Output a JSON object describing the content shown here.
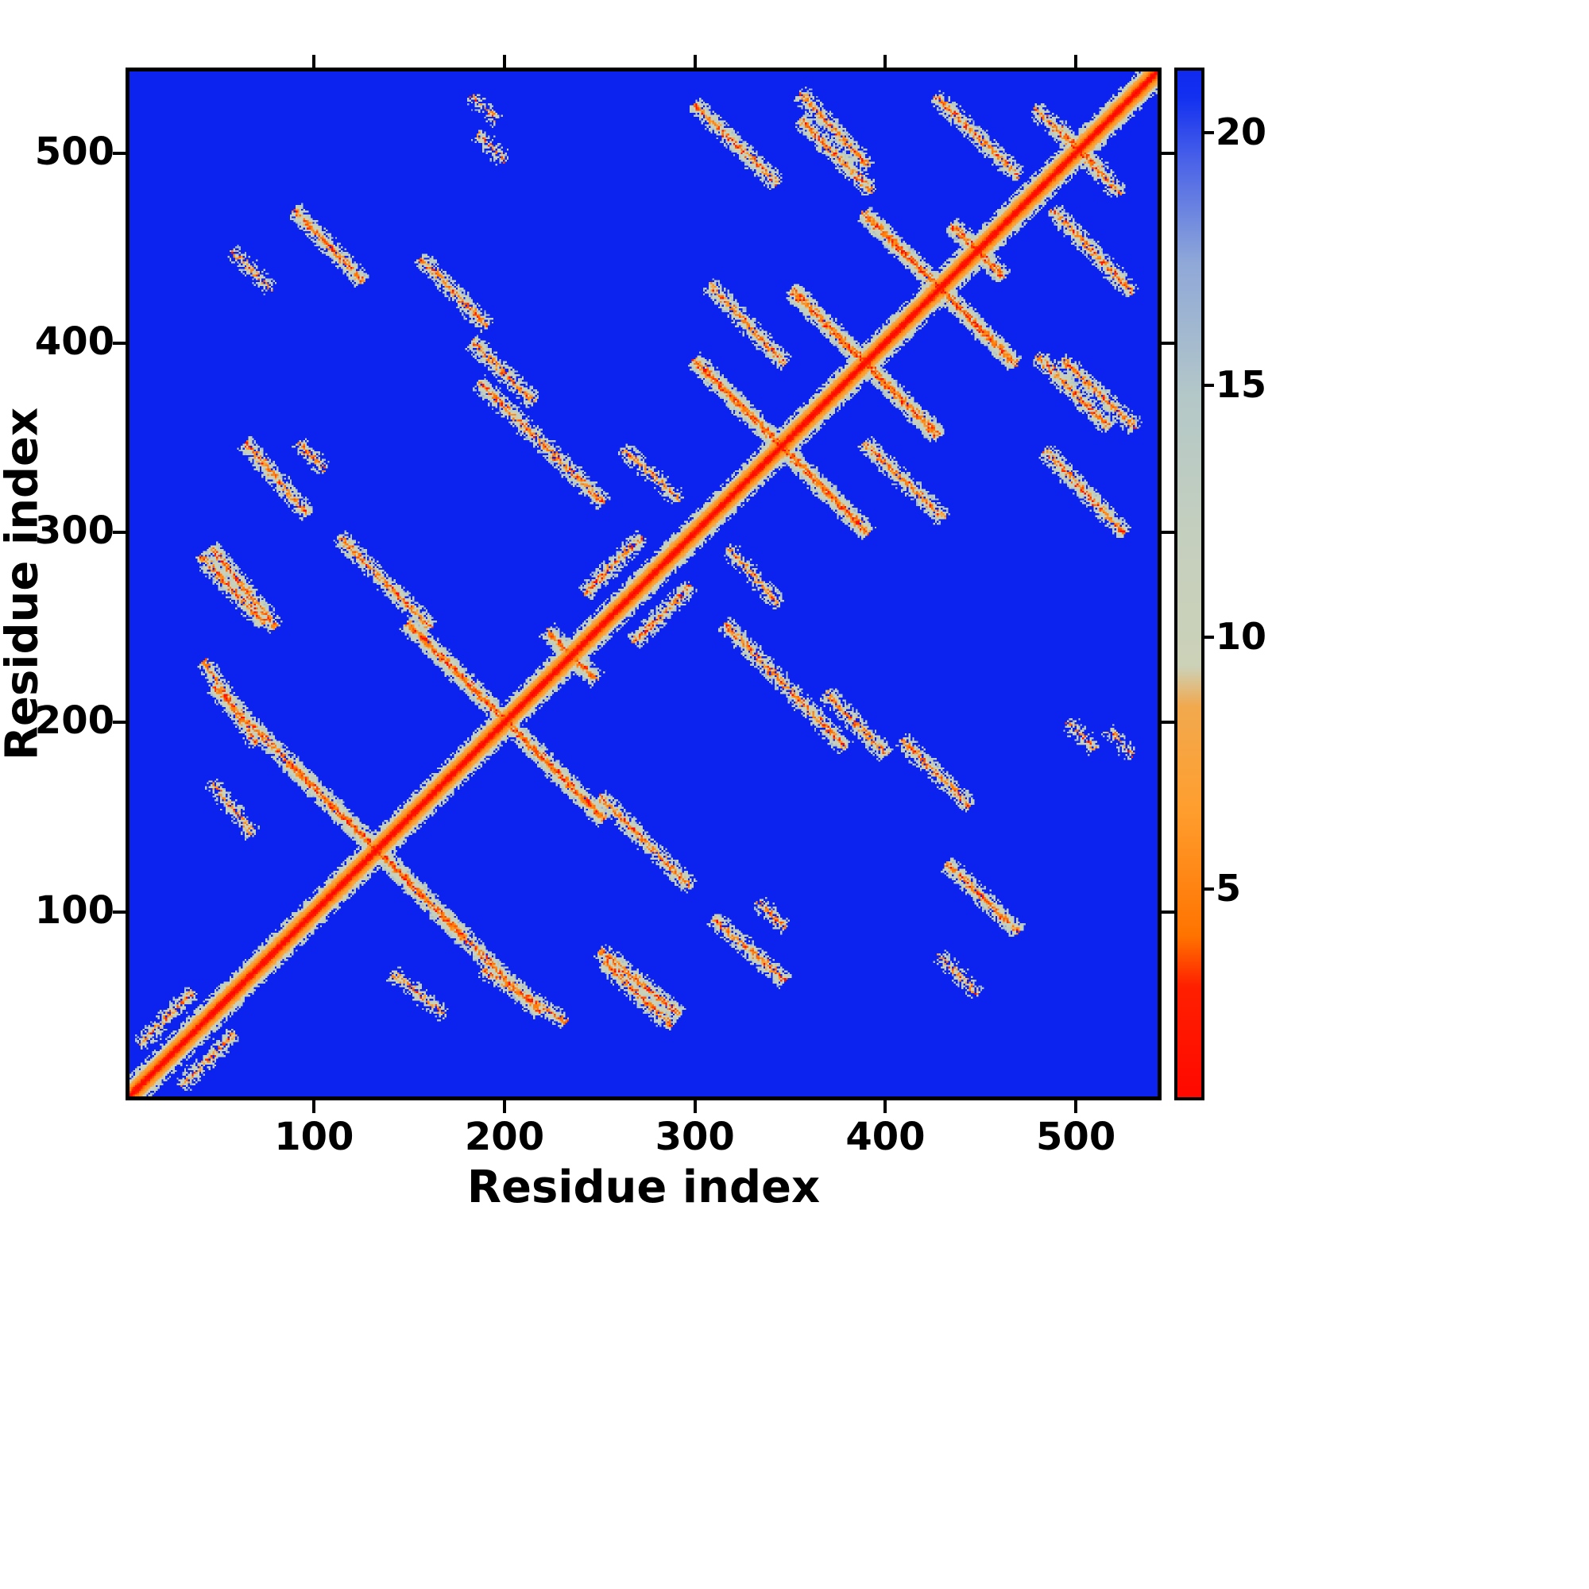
{
  "figure": {
    "xlabel": "Residue index",
    "ylabel": "Residue index"
  },
  "chart_data": {
    "type": "heatmap",
    "title": "",
    "xlabel": "Residue index",
    "ylabel": "Residue index",
    "x_range": [
      1,
      545
    ],
    "y_range": [
      1,
      545
    ],
    "x_ticks": [
      100,
      200,
      300,
      400,
      500
    ],
    "y_ticks": [
      100,
      200,
      300,
      400,
      500
    ],
    "colorbar_ticks": [
      5,
      10,
      15,
      20
    ],
    "value_range": [
      0.8,
      21.3
    ],
    "background_value": 22,
    "n_residues": 545,
    "seed": 1234,
    "description": "Symmetric protein residue-residue distance/contact map: red main diagonal (zero distance) flanked by orange then gray-green band, vivid blue background (large distance), with symmetric antidiagonal secondary-structure contact streaks (gray-green with orange/red cores).",
    "colormap_stops": [
      [
        0.0,
        "#ff0000"
      ],
      [
        3.0,
        "#ff2000"
      ],
      [
        4.0,
        "#ff7300"
      ],
      [
        6.5,
        "#ff9e2e"
      ],
      [
        8.6,
        "#f2a94e"
      ],
      [
        9.4,
        "#ccd2b8"
      ],
      [
        12.0,
        "#c5cfbe"
      ],
      [
        14.8,
        "#b4c8c8"
      ],
      [
        17.5,
        "#8fa8d8"
      ],
      [
        19.5,
        "#4b63e8"
      ],
      [
        20.8,
        "#1330f0"
      ],
      [
        22.0,
        "#0c22ee"
      ]
    ],
    "diagonal": {
      "half_width": 11,
      "slope": 1.25
    },
    "contact_segments": [
      [
        38,
        288,
        72,
        252,
        0.8
      ],
      [
        45,
        218,
        95,
        168,
        0.8
      ],
      [
        85,
        178,
        178,
        85,
        0.85
      ],
      [
        112,
        298,
        160,
        250,
        0.8
      ],
      [
        148,
        252,
        252,
        148,
        0.8
      ],
      [
        188,
        68,
        232,
        40,
        0.7
      ],
      [
        250,
        78,
        292,
        44,
        0.8
      ],
      [
        140,
        66,
        168,
        44,
        0.45
      ],
      [
        242,
        268,
        272,
        298,
        0.7
      ],
      [
        90,
        348,
        104,
        334,
        0.4
      ],
      [
        55,
        450,
        75,
        430,
        0.35
      ],
      [
        88,
        472,
        124,
        434,
        0.85
      ],
      [
        155,
        446,
        190,
        410,
        0.75
      ],
      [
        182,
        402,
        215,
        370,
        0.65
      ],
      [
        186,
        380,
        252,
        316,
        0.7
      ],
      [
        300,
        392,
        392,
        300,
        0.85
      ],
      [
        308,
        432,
        348,
        390,
        0.8
      ],
      [
        352,
        430,
        428,
        352,
        0.8
      ],
      [
        390,
        470,
        470,
        390,
        0.8
      ],
      [
        300,
        528,
        344,
        486,
        0.8
      ],
      [
        356,
        520,
        394,
        482,
        0.75
      ],
      [
        428,
        532,
        472,
        490,
        0.8
      ],
      [
        480,
        526,
        516,
        492,
        0.7
      ],
      [
        495,
        392,
        534,
        356,
        0.75
      ],
      [
        436,
        464,
        464,
        436,
        0.6
      ],
      [
        185,
        512,
        200,
        498,
        0.35
      ],
      [
        262,
        345,
        292,
        318,
        0.45
      ],
      [
        222,
        248,
        248,
        222,
        0.6
      ],
      [
        6,
        28,
        34,
        56,
        0.5
      ],
      [
        310,
        95,
        348,
        62,
        0.7
      ],
      [
        520,
        196,
        532,
        182,
        0.3
      ]
    ]
  },
  "colors": {
    "page_background": "#ffffff",
    "frame": "#000000",
    "text": "#000000",
    "heatmap_background": "#0c22ee",
    "diagonal": "#ff0000"
  }
}
